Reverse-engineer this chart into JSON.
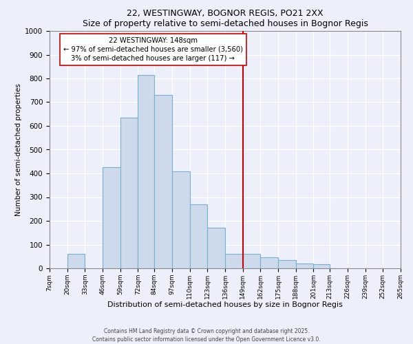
{
  "title": "22, WESTINGWAY, BOGNOR REGIS, PO21 2XX",
  "subtitle": "Size of property relative to semi-detached houses in Bognor Regis",
  "xlabel": "Distribution of semi-detached houses by size in Bognor Regis",
  "ylabel": "Number of semi-detached properties",
  "bin_labels": [
    "7sqm",
    "20sqm",
    "33sqm",
    "46sqm",
    "59sqm",
    "72sqm",
    "84sqm",
    "97sqm",
    "110sqm",
    "123sqm",
    "136sqm",
    "149sqm",
    "162sqm",
    "175sqm",
    "188sqm",
    "201sqm",
    "213sqm",
    "226sqm",
    "239sqm",
    "252sqm",
    "265sqm"
  ],
  "bin_edges": [
    7,
    20,
    33,
    46,
    59,
    72,
    84,
    97,
    110,
    123,
    136,
    149,
    162,
    175,
    188,
    201,
    213,
    226,
    239,
    252,
    265
  ],
  "bar_heights": [
    0,
    60,
    0,
    425,
    635,
    815,
    730,
    410,
    270,
    170,
    60,
    60,
    45,
    35,
    20,
    17,
    0,
    0,
    0,
    0
  ],
  "bar_color": "#ccdaeb",
  "bar_edge_color": "#7aafd4",
  "vline_x": 149,
  "vline_color": "#cc0000",
  "annotation_text": "22 WESTINGWAY: 148sqm\n← 97% of semi-detached houses are smaller (3,560)\n3% of semi-detached houses are larger (117) →",
  "annotation_box_color": "#ffffff",
  "annotation_box_edge": "#cc0000",
  "ylim": [
    0,
    1000
  ],
  "background_color": "#edf0fa",
  "grid_color": "#ffffff",
  "footer_line1": "Contains HM Land Registry data © Crown copyright and database right 2025.",
  "footer_line2": "Contains public sector information licensed under the Open Government Licence v3.0."
}
